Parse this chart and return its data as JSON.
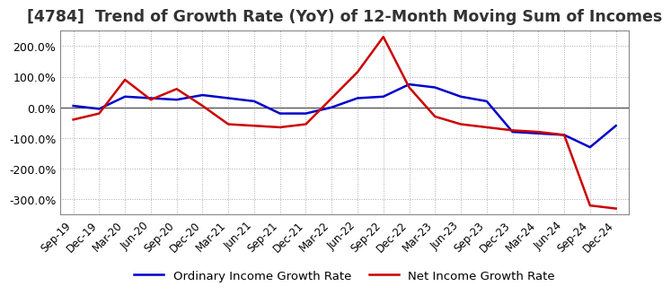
{
  "title": "[4784]  Trend of Growth Rate (YoY) of 12-Month Moving Sum of Incomes",
  "title_fontsize": 12.5,
  "ylim": [
    -350,
    250
  ],
  "yticks": [
    -300,
    -200,
    -100,
    0,
    100,
    200
  ],
  "background_color": "#ffffff",
  "grid_color": "#aaaaaa",
  "legend_labels": [
    "Ordinary Income Growth Rate",
    "Net Income Growth Rate"
  ],
  "legend_colors": [
    "#0000cc",
    "#cc0000"
  ],
  "x_labels": [
    "Sep-19",
    "Dec-19",
    "Mar-20",
    "Jun-20",
    "Sep-20",
    "Dec-20",
    "Mar-21",
    "Jun-21",
    "Sep-21",
    "Dec-21",
    "Mar-22",
    "Jun-22",
    "Sep-22",
    "Dec-22",
    "Mar-23",
    "Jun-23",
    "Sep-23",
    "Dec-23",
    "Mar-24",
    "Jun-24",
    "Sep-24",
    "Dec-24"
  ],
  "ordinary_income_growth": [
    5,
    -5,
    35,
    30,
    25,
    40,
    30,
    20,
    -20,
    -20,
    0,
    30,
    35,
    75,
    65,
    35,
    20,
    -80,
    -85,
    -90,
    -130,
    -60
  ],
  "net_income_growth": [
    -40,
    -20,
    90,
    25,
    60,
    5,
    -55,
    -60,
    -65,
    -55,
    30,
    115,
    230,
    65,
    -30,
    -55,
    -65,
    -75,
    -80,
    -90,
    -320,
    -330
  ]
}
